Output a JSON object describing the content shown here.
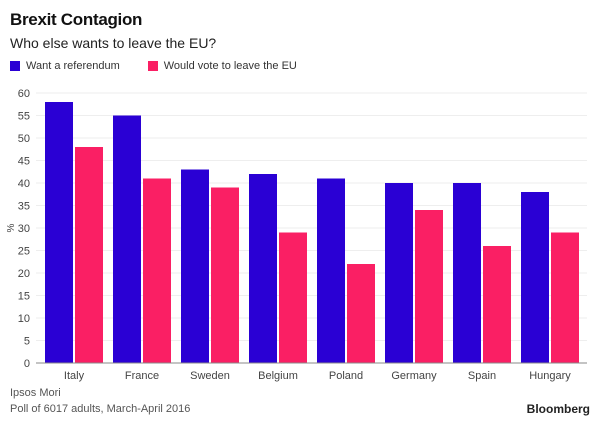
{
  "chart_data": {
    "type": "bar",
    "title": "Brexit Contagion",
    "subtitle": "Who else wants to leave the EU?",
    "ylabel": "%",
    "xlabel": "",
    "ylim": [
      0,
      60
    ],
    "yticks": [
      0,
      5,
      10,
      15,
      20,
      25,
      30,
      35,
      40,
      45,
      50,
      55,
      60
    ],
    "grid": true,
    "legend_position": "top-left",
    "categories": [
      "Italy",
      "France",
      "Sweden",
      "Belgium",
      "Poland",
      "Germany",
      "Spain",
      "Hungary"
    ],
    "series": [
      {
        "name": "Want a referendum",
        "color": "#2a00d4",
        "values": [
          58,
          55,
          43,
          42,
          41,
          40,
          40,
          38
        ]
      },
      {
        "name": "Would vote to leave the EU",
        "color": "#fa1f64",
        "values": [
          48,
          41,
          39,
          29,
          22,
          34,
          26,
          29
        ]
      }
    ],
    "source": "Ipsos Mori",
    "note": "Poll of 6017 adults, March-April 2016",
    "brand": "Bloomberg"
  }
}
